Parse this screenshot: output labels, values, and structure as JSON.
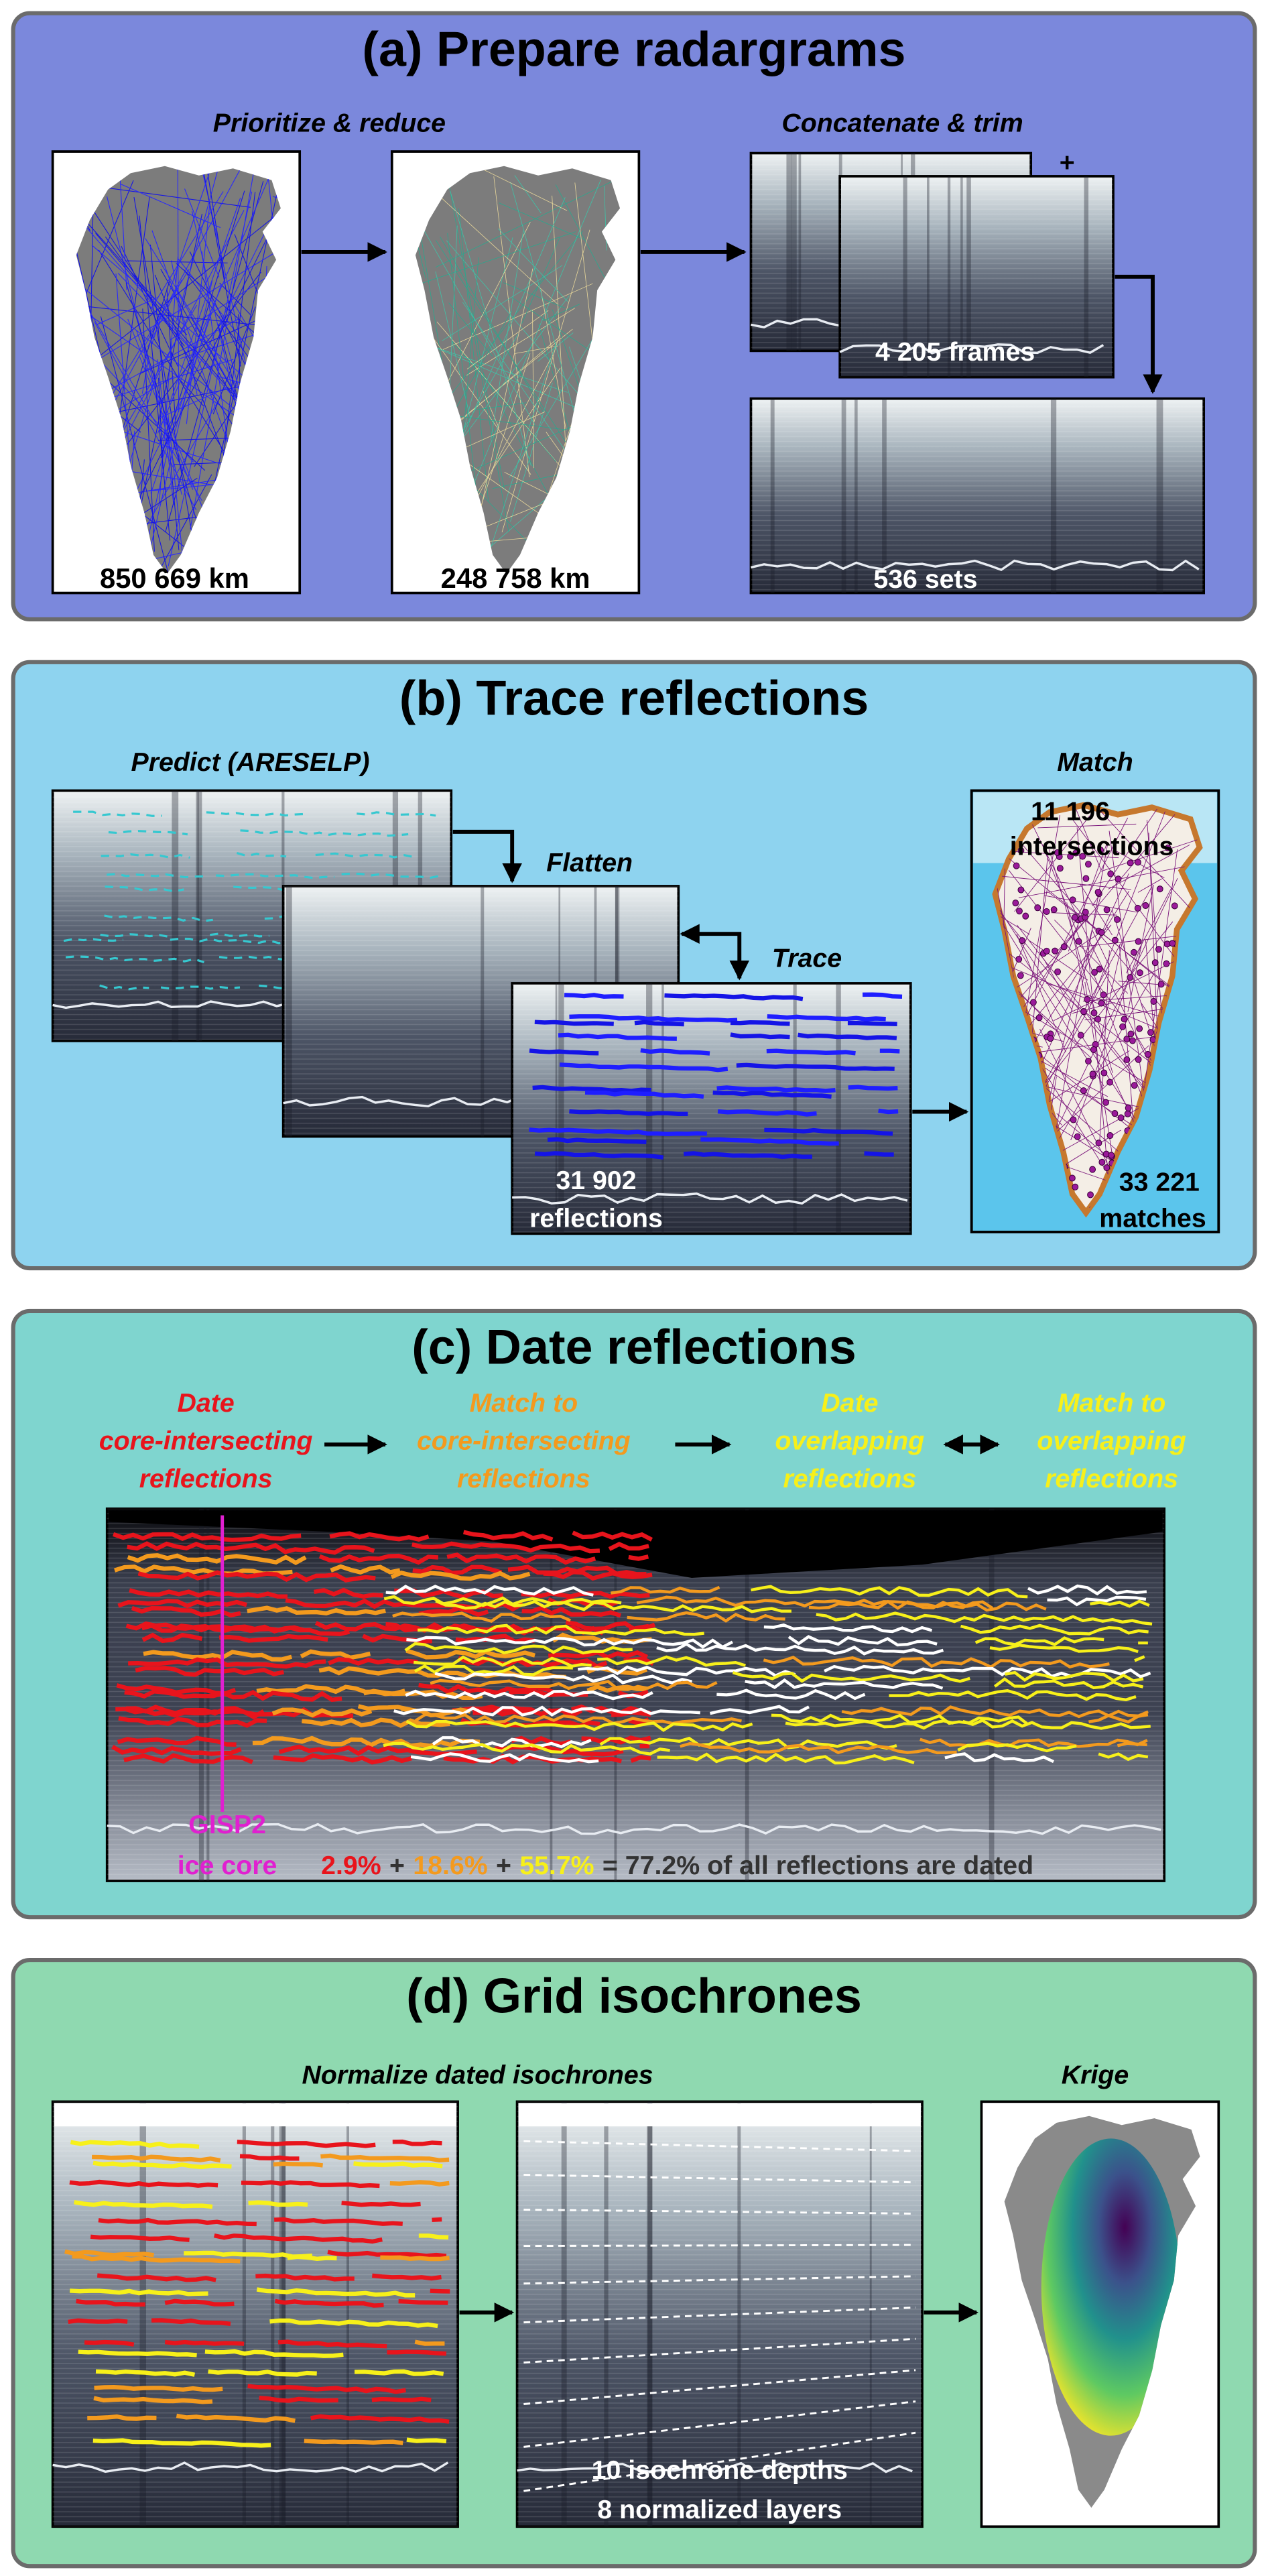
{
  "panel_a": {
    "title": "(a) Prepare radargrams",
    "steps": [
      "Prioritize & reduce",
      "Concatenate & trim"
    ],
    "map_labels": [
      "850 669 km",
      "248 758 km"
    ],
    "plus": "+",
    "frames_label": "4 205 frames",
    "sets_label": "536 sets"
  },
  "panel_b": {
    "title": "(b) Trace reflections",
    "steps": [
      "Predict (ARESELP)",
      "Flatten",
      "Trace",
      "Match"
    ],
    "reflections_label": [
      "31 902",
      "reflections"
    ],
    "intersections_label": [
      "11 196",
      "intersections"
    ],
    "matches_label": [
      "33 221",
      "matches"
    ]
  },
  "panel_c": {
    "title": "(c) Date reflections",
    "steps": [
      {
        "lines": [
          "Date",
          "core-intersecting",
          "reflections"
        ],
        "color": "#e8141c"
      },
      {
        "lines": [
          "Match to",
          "core-intersecting",
          "reflections"
        ],
        "color": "#f39a1e"
      },
      {
        "lines": [
          "Date",
          "overlapping",
          "reflections"
        ],
        "color": "#f7f01a"
      },
      {
        "lines": [
          "Match to",
          "overlapping",
          "reflections"
        ],
        "color": "#f7f01a"
      }
    ],
    "core_label": [
      "GISP2",
      "ice core"
    ],
    "core_color": "#e020d0",
    "summary": [
      {
        "text": "2.9%",
        "color": "#e8141c"
      },
      {
        "text": "+",
        "color": "#333333"
      },
      {
        "text": "18.6%",
        "color": "#f39a1e"
      },
      {
        "text": "+",
        "color": "#333333"
      },
      {
        "text": "55.7%",
        "color": "#f7f01a"
      },
      {
        "text": "= 77.2% of all reflections are dated",
        "color": "#333333"
      }
    ]
  },
  "panel_d": {
    "title": "(d) Grid isochrones",
    "steps": [
      "Normalize dated isochrones",
      "Krige"
    ],
    "layer_labels": [
      "10 isochrone depths",
      "8 normalized layers"
    ]
  }
}
